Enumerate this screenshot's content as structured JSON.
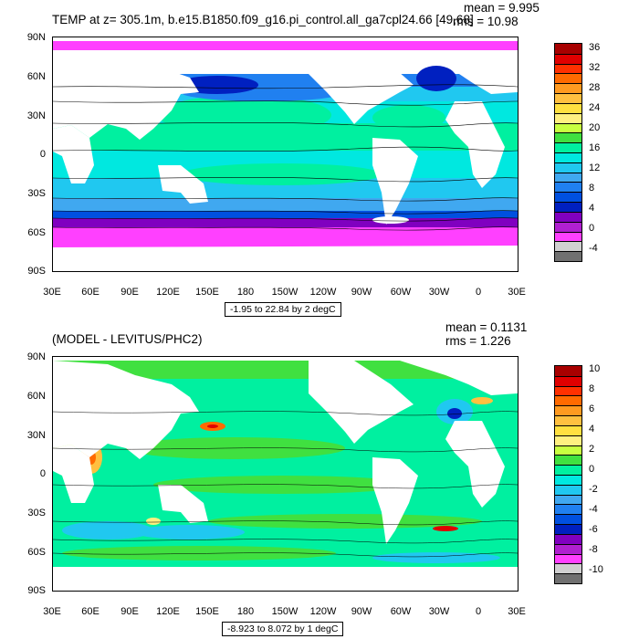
{
  "top": {
    "title": "TEMP at z= 305.1m, b.e15.B1850.f09_g16.pi_control.all_ga7cpl24.66 [49,68]",
    "mean": "mean = 9.995",
    "rms": "rms = 10.98",
    "range": "-1.95 to 22.84 by 2 degC",
    "colorbar": {
      "labels": [
        "36",
        "32",
        "28",
        "24",
        "20",
        "16",
        "12",
        "8",
        "4",
        "0",
        "-4"
      ],
      "colors": [
        "#a80000",
        "#e00000",
        "#ff3000",
        "#ff6a00",
        "#ff9a20",
        "#ffc040",
        "#ffe040",
        "#fff080",
        "#c8ff40",
        "#40e040",
        "#00f0a0",
        "#00e8e0",
        "#20c8f0",
        "#40a8f0",
        "#2080f0",
        "#0050e0",
        "#0020c0",
        "#8000c0",
        "#b020d0",
        "#ff40ff",
        "#d0d0d0",
        "#707070"
      ]
    }
  },
  "bottom": {
    "title": "(MODEL - LEVITUS/PHC2)",
    "mean": "mean = 0.1131",
    "rms": "rms = 1.226",
    "range": "-8.923 to 8.072 by 1 degC",
    "colorbar": {
      "labels": [
        "10",
        "8",
        "6",
        "4",
        "2",
        "0",
        "-2",
        "-4",
        "-6",
        "-8",
        "-10"
      ],
      "colors": [
        "#a80000",
        "#e00000",
        "#ff3000",
        "#ff6a00",
        "#ff9a20",
        "#ffc040",
        "#ffe040",
        "#fff080",
        "#c8ff40",
        "#40e040",
        "#00f0a0",
        "#00e8e0",
        "#20c8f0",
        "#40a8f0",
        "#2080f0",
        "#0050e0",
        "#0020c0",
        "#8000c0",
        "#b020d0",
        "#ff40ff",
        "#d0d0d0",
        "#707070"
      ]
    }
  },
  "lat_labels": [
    "90N",
    "60N",
    "30N",
    "0",
    "30S",
    "60S",
    "90S"
  ],
  "lon_labels": [
    "30E",
    "60E",
    "90E",
    "120E",
    "150E",
    "180",
    "150W",
    "120W",
    "90W",
    "60W",
    "30W",
    "0",
    "30E"
  ]
}
